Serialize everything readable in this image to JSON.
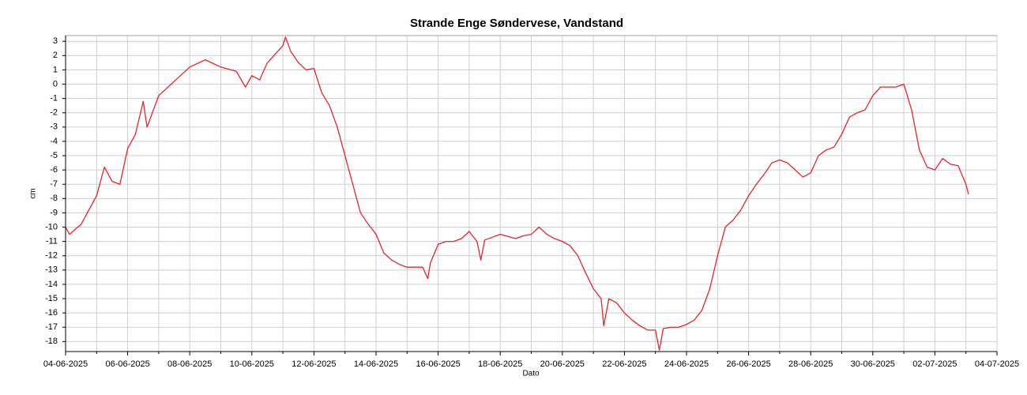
{
  "chart_data": {
    "type": "line",
    "title": "Strande Enge Søndervese, Vandstand",
    "x_label": "Dato",
    "y_label": "cm",
    "grid": true,
    "xlim": [
      "04-06-2025",
      "04-07-2025"
    ],
    "xticks": [
      "04-06-2025",
      "06-06-2025",
      "08-06-2025",
      "10-06-2025",
      "12-06-2025",
      "14-06-2025",
      "16-06-2025",
      "18-06-2025",
      "20-06-2025",
      "22-06-2025",
      "24-06-2025",
      "26-06-2025",
      "28-06-2025",
      "30-06-2025",
      "02-07-2025",
      "04-07-2025"
    ],
    "minor_xticks": [
      "05-06-2025",
      "07-06-2025",
      "09-06-2025",
      "11-06-2025",
      "13-06-2025",
      "15-06-2025",
      "17-06-2025",
      "19-06-2025",
      "21-06-2025",
      "23-06-2025",
      "25-06-2025",
      "27-06-2025",
      "29-06-2025",
      "01-07-2025",
      "03-07-2025"
    ],
    "ylim": [
      -18.7,
      3.4
    ],
    "yticks": [
      -18,
      -17,
      -16,
      -15,
      -14,
      -13,
      -12,
      -11,
      -10,
      -9,
      -8,
      -7,
      -6,
      -5,
      -4,
      -3,
      -2,
      -1,
      0,
      1,
      2,
      3
    ],
    "series": [
      {
        "name": "Vandstand",
        "color": "#e8242a",
        "x": [
          "04-06-2025 00:00",
          "04-06-2025 03:00",
          "04-06-2025 12:00",
          "05-06-2025 00:00",
          "05-06-2025 06:00",
          "05-06-2025 12:00",
          "05-06-2025 18:00",
          "06-06-2025 00:00",
          "06-06-2025 06:00",
          "06-06-2025 12:00",
          "06-06-2025 15:00",
          "07-06-2025 00:00",
          "07-06-2025 12:00",
          "08-06-2025 00:00",
          "08-06-2025 12:00",
          "09-06-2025 00:00",
          "09-06-2025 12:00",
          "09-06-2025 19:00",
          "10-06-2025 00:00",
          "10-06-2025 06:00",
          "10-06-2025 12:00",
          "11-06-2025 00:00",
          "11-06-2025 02:00",
          "11-06-2025 06:00",
          "11-06-2025 12:00",
          "11-06-2025 18:00",
          "12-06-2025 00:00",
          "12-06-2025 06:00",
          "12-06-2025 12:00",
          "12-06-2025 18:00",
          "13-06-2025 00:00",
          "13-06-2025 06:00",
          "13-06-2025 12:00",
          "13-06-2025 18:00",
          "14-06-2025 00:00",
          "14-06-2025 06:00",
          "14-06-2025 12:00",
          "14-06-2025 18:00",
          "15-06-2025 00:00",
          "15-06-2025 12:00",
          "15-06-2025 16:00",
          "15-06-2025 18:00",
          "16-06-2025 00:00",
          "16-06-2025 06:00",
          "16-06-2025 12:00",
          "16-06-2025 18:00",
          "17-06-2025 00:00",
          "17-06-2025 06:00",
          "17-06-2025 09:00",
          "17-06-2025 12:00",
          "17-06-2025 18:00",
          "18-06-2025 00:00",
          "18-06-2025 12:00",
          "18-06-2025 18:00",
          "19-06-2025 00:00",
          "19-06-2025 06:00",
          "19-06-2025 12:00",
          "19-06-2025 18:00",
          "20-06-2025 00:00",
          "20-06-2025 06:00",
          "20-06-2025 12:00",
          "20-06-2025 18:00",
          "21-06-2025 00:00",
          "21-06-2025 06:00",
          "21-06-2025 08:00",
          "21-06-2025 12:00",
          "21-06-2025 18:00",
          "22-06-2025 00:00",
          "22-06-2025 06:00",
          "22-06-2025 12:00",
          "22-06-2025 18:00",
          "23-06-2025 00:00",
          "23-06-2025 03:00",
          "23-06-2025 06:00",
          "23-06-2025 12:00",
          "23-06-2025 18:00",
          "24-06-2025 00:00",
          "24-06-2025 06:00",
          "24-06-2025 12:00",
          "24-06-2025 18:00",
          "25-06-2025 00:00",
          "25-06-2025 06:00",
          "25-06-2025 12:00",
          "25-06-2025 18:00",
          "26-06-2025 00:00",
          "26-06-2025 06:00",
          "26-06-2025 12:00",
          "26-06-2025 18:00",
          "27-06-2025 00:00",
          "27-06-2025 06:00",
          "27-06-2025 12:00",
          "27-06-2025 18:00",
          "28-06-2025 00:00",
          "28-06-2025 06:00",
          "28-06-2025 12:00",
          "28-06-2025 18:00",
          "29-06-2025 00:00",
          "29-06-2025 06:00",
          "29-06-2025 12:00",
          "29-06-2025 18:00",
          "30-06-2025 00:00",
          "30-06-2025 06:00",
          "30-06-2025 12:00",
          "30-06-2025 18:00",
          "01-07-2025 00:00",
          "01-07-2025 06:00",
          "01-07-2025 12:00",
          "01-07-2025 18:00",
          "02-07-2025 00:00",
          "02-07-2025 06:00",
          "02-07-2025 12:00",
          "02-07-2025 18:00",
          "03-07-2025 00:00",
          "03-07-2025 02:00"
        ],
        "values": [
          -10,
          -10.5,
          -9.8,
          -7.8,
          -5.8,
          -6.8,
          -7,
          -4.5,
          -3.5,
          -1.2,
          -3,
          -0.8,
          0.2,
          1.2,
          1.7,
          1.2,
          0.9,
          -0.2,
          0.6,
          0.3,
          1.5,
          2.7,
          3.3,
          2.3,
          1.5,
          1,
          1.1,
          -0.6,
          -1.5,
          -3,
          -5,
          -7,
          -9,
          -9.8,
          -10.5,
          -11.8,
          -12.3,
          -12.6,
          -12.8,
          -12.8,
          -13.6,
          -12.5,
          -11.2,
          -11,
          -11,
          -10.8,
          -10.3,
          -11,
          -12.3,
          -10.9,
          -10.7,
          -10.5,
          -10.8,
          -10.6,
          -10.5,
          -10,
          -10.5,
          -10.8,
          -11,
          -11.3,
          -12,
          -13.2,
          -14.3,
          -15,
          -16.9,
          -15,
          -15.3,
          -16,
          -16.5,
          -16.9,
          -17.2,
          -17.2,
          -18.6,
          -17.1,
          -17,
          -17,
          -16.8,
          -16.5,
          -15.8,
          -14.3,
          -12,
          -10,
          -9.5,
          -8.8,
          -7.8,
          -7,
          -6.3,
          -5.5,
          -5.3,
          -5.5,
          -6,
          -6.5,
          -6.2,
          -5,
          -4.6,
          -4.4,
          -3.5,
          -2.3,
          -2,
          -1.8,
          -0.8,
          -0.2,
          -0.2,
          -0.2,
          0,
          -1.8,
          -4.6,
          -5.8,
          -6,
          -5.2,
          -5.6,
          -5.7,
          -7,
          -7.7
        ]
      }
    ]
  }
}
